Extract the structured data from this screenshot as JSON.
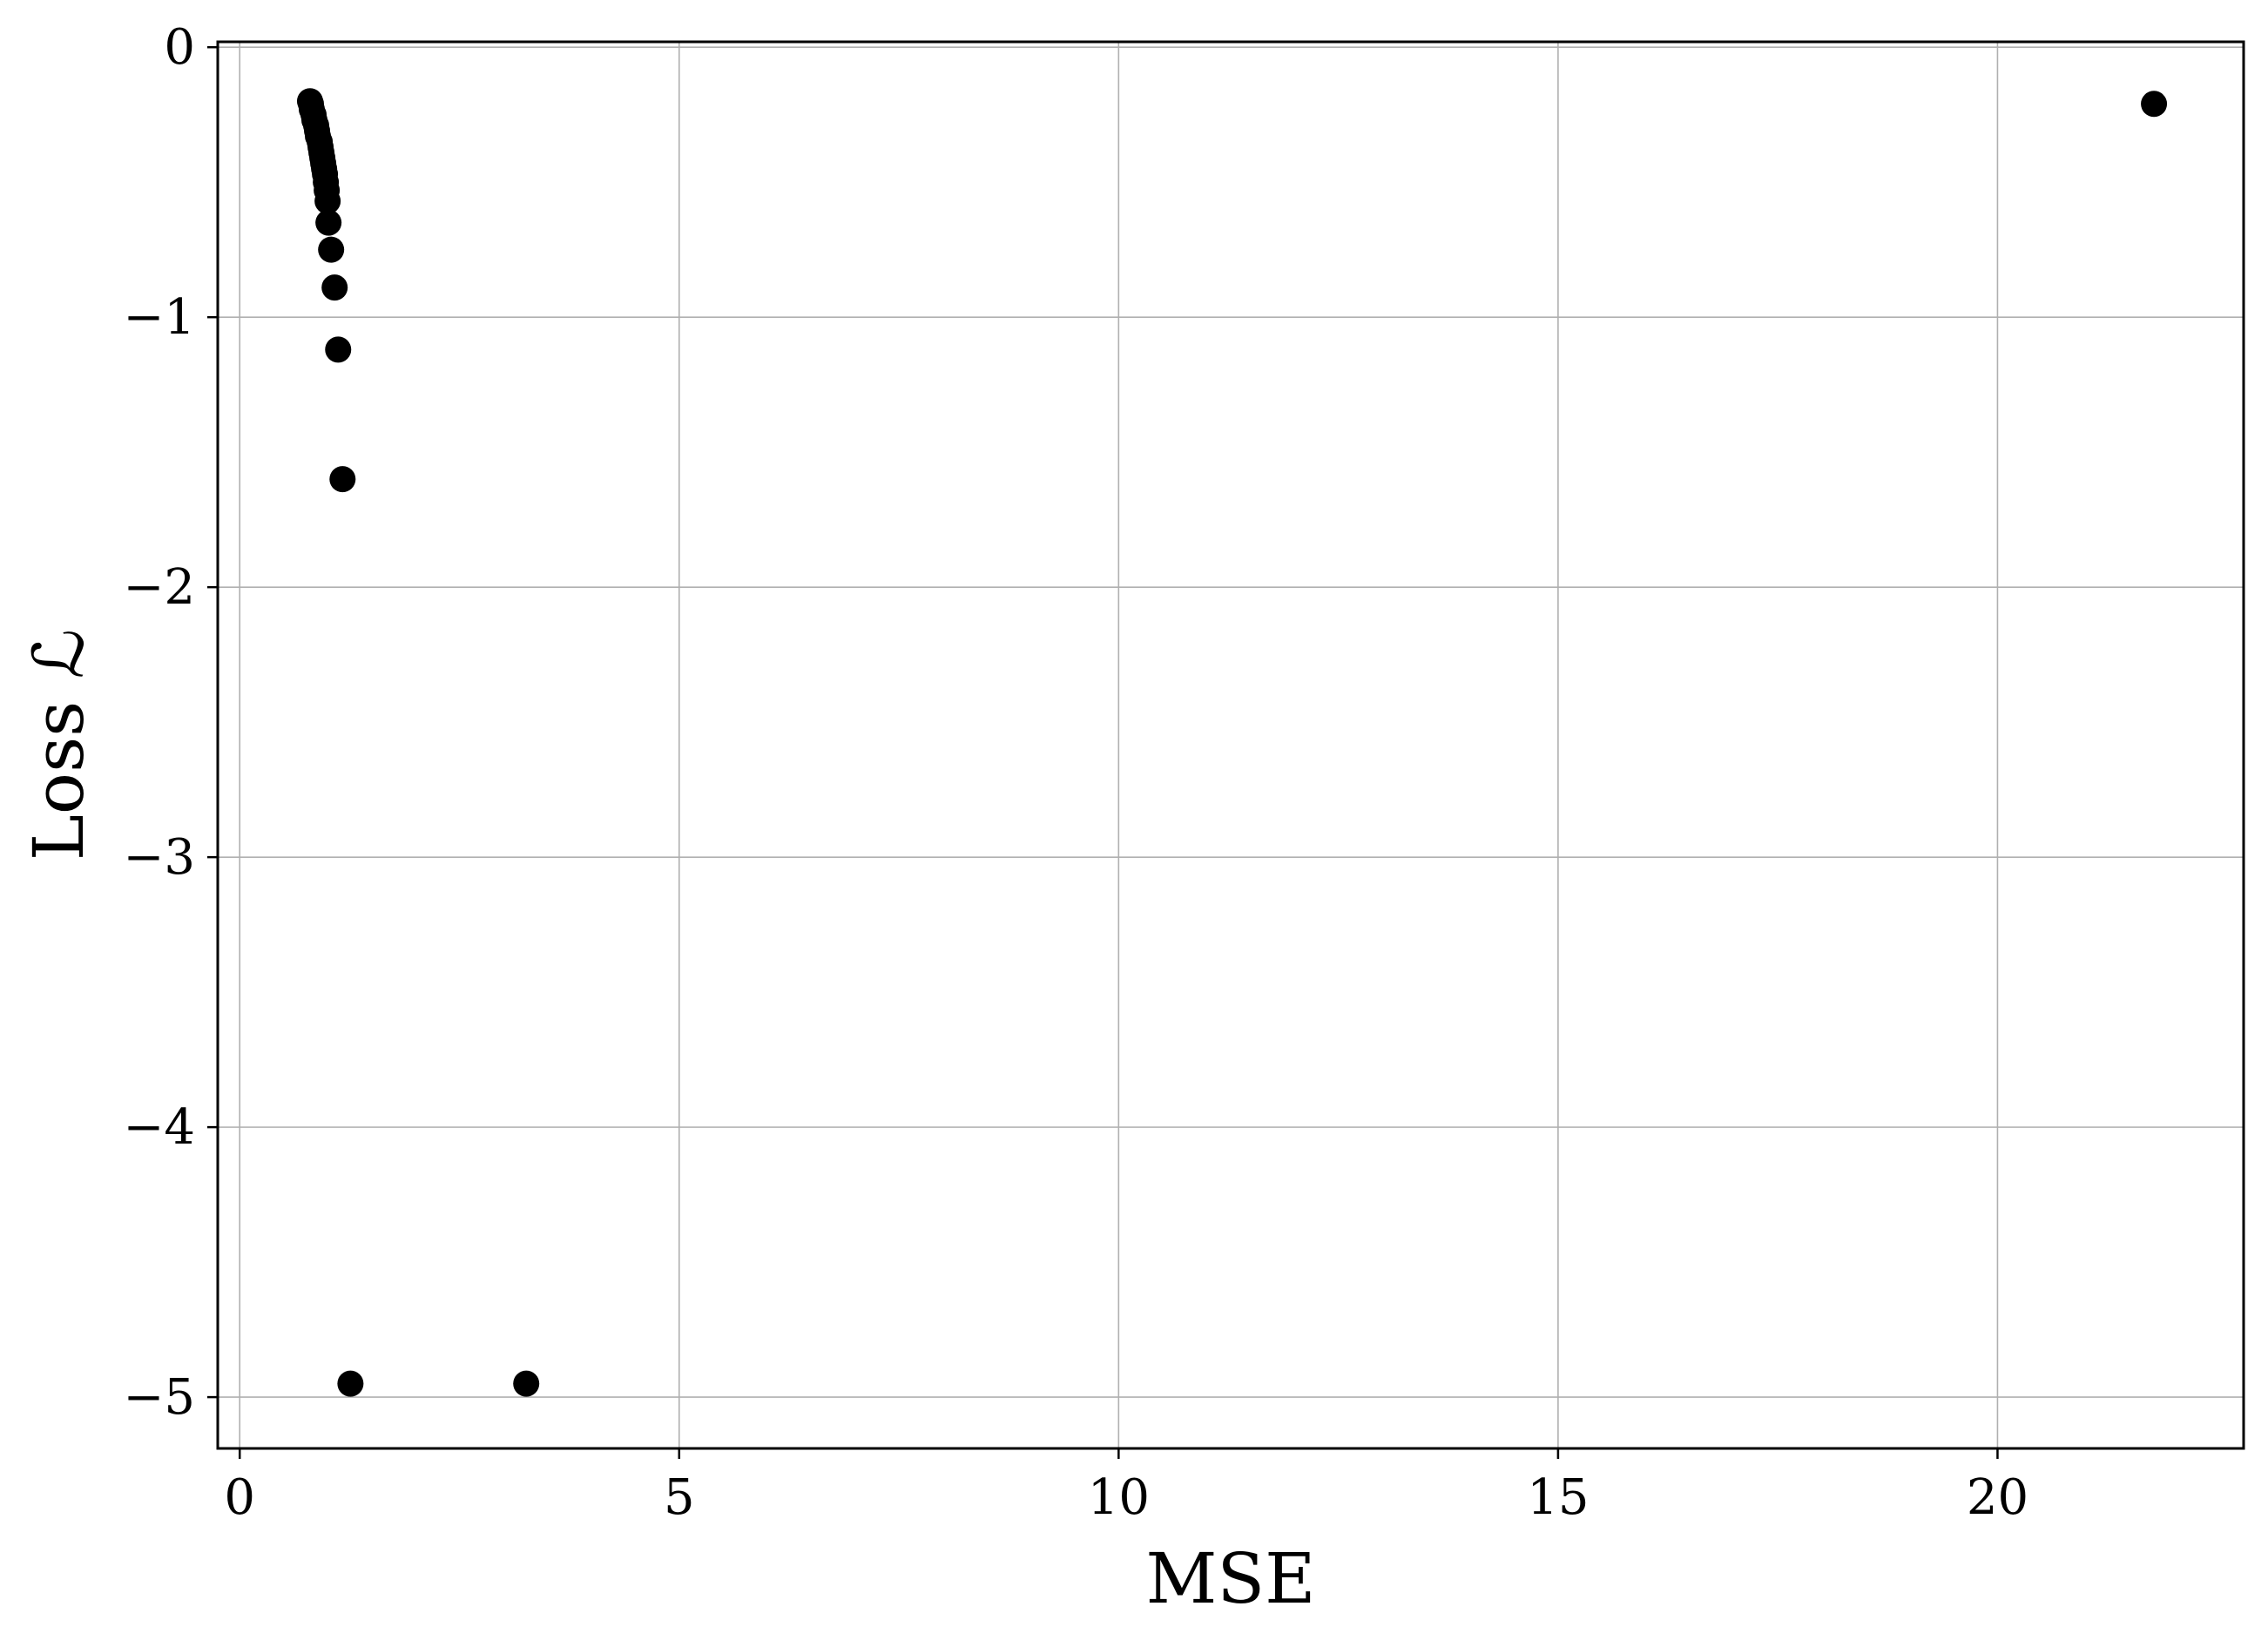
{
  "chart_data": {
    "type": "scatter",
    "title": "",
    "xlabel": "MSE",
    "ylabel": "Loss ℒ",
    "xlim": [
      -0.25,
      22.8
    ],
    "ylim": [
      -5.19,
      0.02
    ],
    "xticks": [
      0,
      5,
      10,
      15,
      20
    ],
    "yticks": [
      0,
      -1,
      -2,
      -3,
      -4,
      -5
    ],
    "xtick_labels": [
      "0",
      "5",
      "10",
      "15",
      "20"
    ],
    "ytick_labels": [
      "0",
      "−1",
      "−2",
      "−3",
      "−4",
      "−5"
    ],
    "grid": true,
    "marker_color": "#000000",
    "series": [
      {
        "points": [
          {
            "x": 0.8,
            "y": -0.2
          },
          {
            "x": 0.81,
            "y": -0.21
          },
          {
            "x": 0.82,
            "y": -0.23
          },
          {
            "x": 0.84,
            "y": -0.25
          },
          {
            "x": 0.85,
            "y": -0.27
          },
          {
            "x": 0.87,
            "y": -0.29
          },
          {
            "x": 0.88,
            "y": -0.31
          },
          {
            "x": 0.89,
            "y": -0.33
          },
          {
            "x": 0.91,
            "y": -0.35
          },
          {
            "x": 0.92,
            "y": -0.37
          },
          {
            "x": 0.93,
            "y": -0.39
          },
          {
            "x": 0.94,
            "y": -0.41
          },
          {
            "x": 0.95,
            "y": -0.43
          },
          {
            "x": 0.96,
            "y": -0.45
          },
          {
            "x": 0.97,
            "y": -0.47
          },
          {
            "x": 0.98,
            "y": -0.5
          },
          {
            "x": 0.99,
            "y": -0.53
          },
          {
            "x": 1.0,
            "y": -0.57
          },
          {
            "x": 1.01,
            "y": -0.65
          },
          {
            "x": 1.04,
            "y": -0.75
          },
          {
            "x": 1.08,
            "y": -0.89
          },
          {
            "x": 1.12,
            "y": -1.12
          },
          {
            "x": 1.17,
            "y": -1.6
          },
          {
            "x": 1.26,
            "y": -4.95
          },
          {
            "x": 3.26,
            "y": -4.95
          },
          {
            "x": 21.78,
            "y": -0.21
          }
        ]
      }
    ]
  }
}
